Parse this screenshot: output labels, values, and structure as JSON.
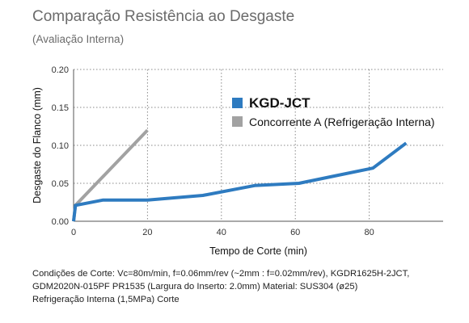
{
  "header": {
    "title": "Comparação Resistência ao Desgaste",
    "subtitle": "(Avaliação Interna)"
  },
  "colors": {
    "kgd": "#2e7bc0",
    "competitor": "#a2a2a2"
  },
  "chart_data": {
    "type": "line",
    "xlabel": "Tempo de Corte (min)",
    "ylabel": "Desgaste do Flanco (mm)",
    "xlim": [
      0,
      100
    ],
    "ylim": [
      0,
      0.2
    ],
    "x_ticks": [
      0,
      20,
      40,
      60,
      80
    ],
    "y_ticks": [
      "0.00",
      "0.05",
      "0.10",
      "0.15",
      "0.20"
    ],
    "grid": "dotted",
    "legend": "top-right",
    "series": [
      {
        "name": "KGD-JCT",
        "color": "#2e7bc0",
        "points": [
          [
            0,
            0.0
          ],
          [
            0.5,
            0.021
          ],
          [
            8,
            0.028
          ],
          [
            20,
            0.028
          ],
          [
            35,
            0.034
          ],
          [
            49,
            0.047
          ],
          [
            61,
            0.05
          ],
          [
            70,
            0.059
          ],
          [
            81,
            0.07
          ],
          [
            90,
            0.103
          ]
        ]
      },
      {
        "name": "Concorrente A (Refrigeração Interna)",
        "color": "#a2a2a2",
        "points": [
          [
            0,
            0.0
          ],
          [
            0.5,
            0.021
          ],
          [
            20,
            0.12
          ]
        ]
      }
    ]
  },
  "notes": [
    "Condições de Corte: Vc=80m/min, f=0.06mm/rev (~2mm : f=0.02mm/rev), KGDR1625H-2JCT,",
    "GDM2020N-015PF PR1535 (Largura  do Inserto: 2.0mm) Material: SUS304 (ø25)",
    "Refrigeração Interna (1,5MPa) Corte"
  ]
}
